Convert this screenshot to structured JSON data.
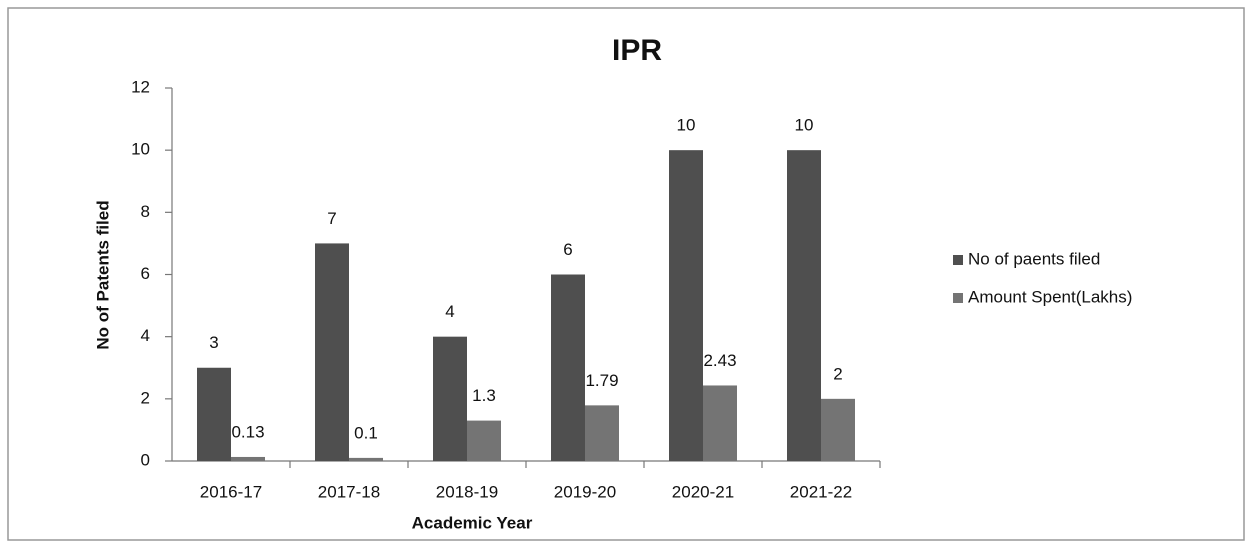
{
  "chart_data": {
    "type": "bar",
    "title": "IPR",
    "x_label": "Academic Year",
    "y_label": "No of Patents filed",
    "categories": [
      "2016-17",
      "2017-18",
      "2018-19",
      "2019-20",
      "2020-21",
      "2021-22"
    ],
    "series": [
      {
        "name": "No of paents filed",
        "color": "#4f4f4f",
        "values": [
          3,
          7,
          4,
          6,
          10,
          10
        ]
      },
      {
        "name": "Amount Spent(Lakhs)",
        "color": "#747474",
        "values": [
          0.13,
          0.1,
          1.3,
          1.79,
          2.43,
          2
        ]
      }
    ],
    "ylim": [
      0,
      12
    ],
    "yticks": [
      0,
      2,
      4,
      6,
      8,
      10,
      12
    ],
    "legend": "right"
  }
}
